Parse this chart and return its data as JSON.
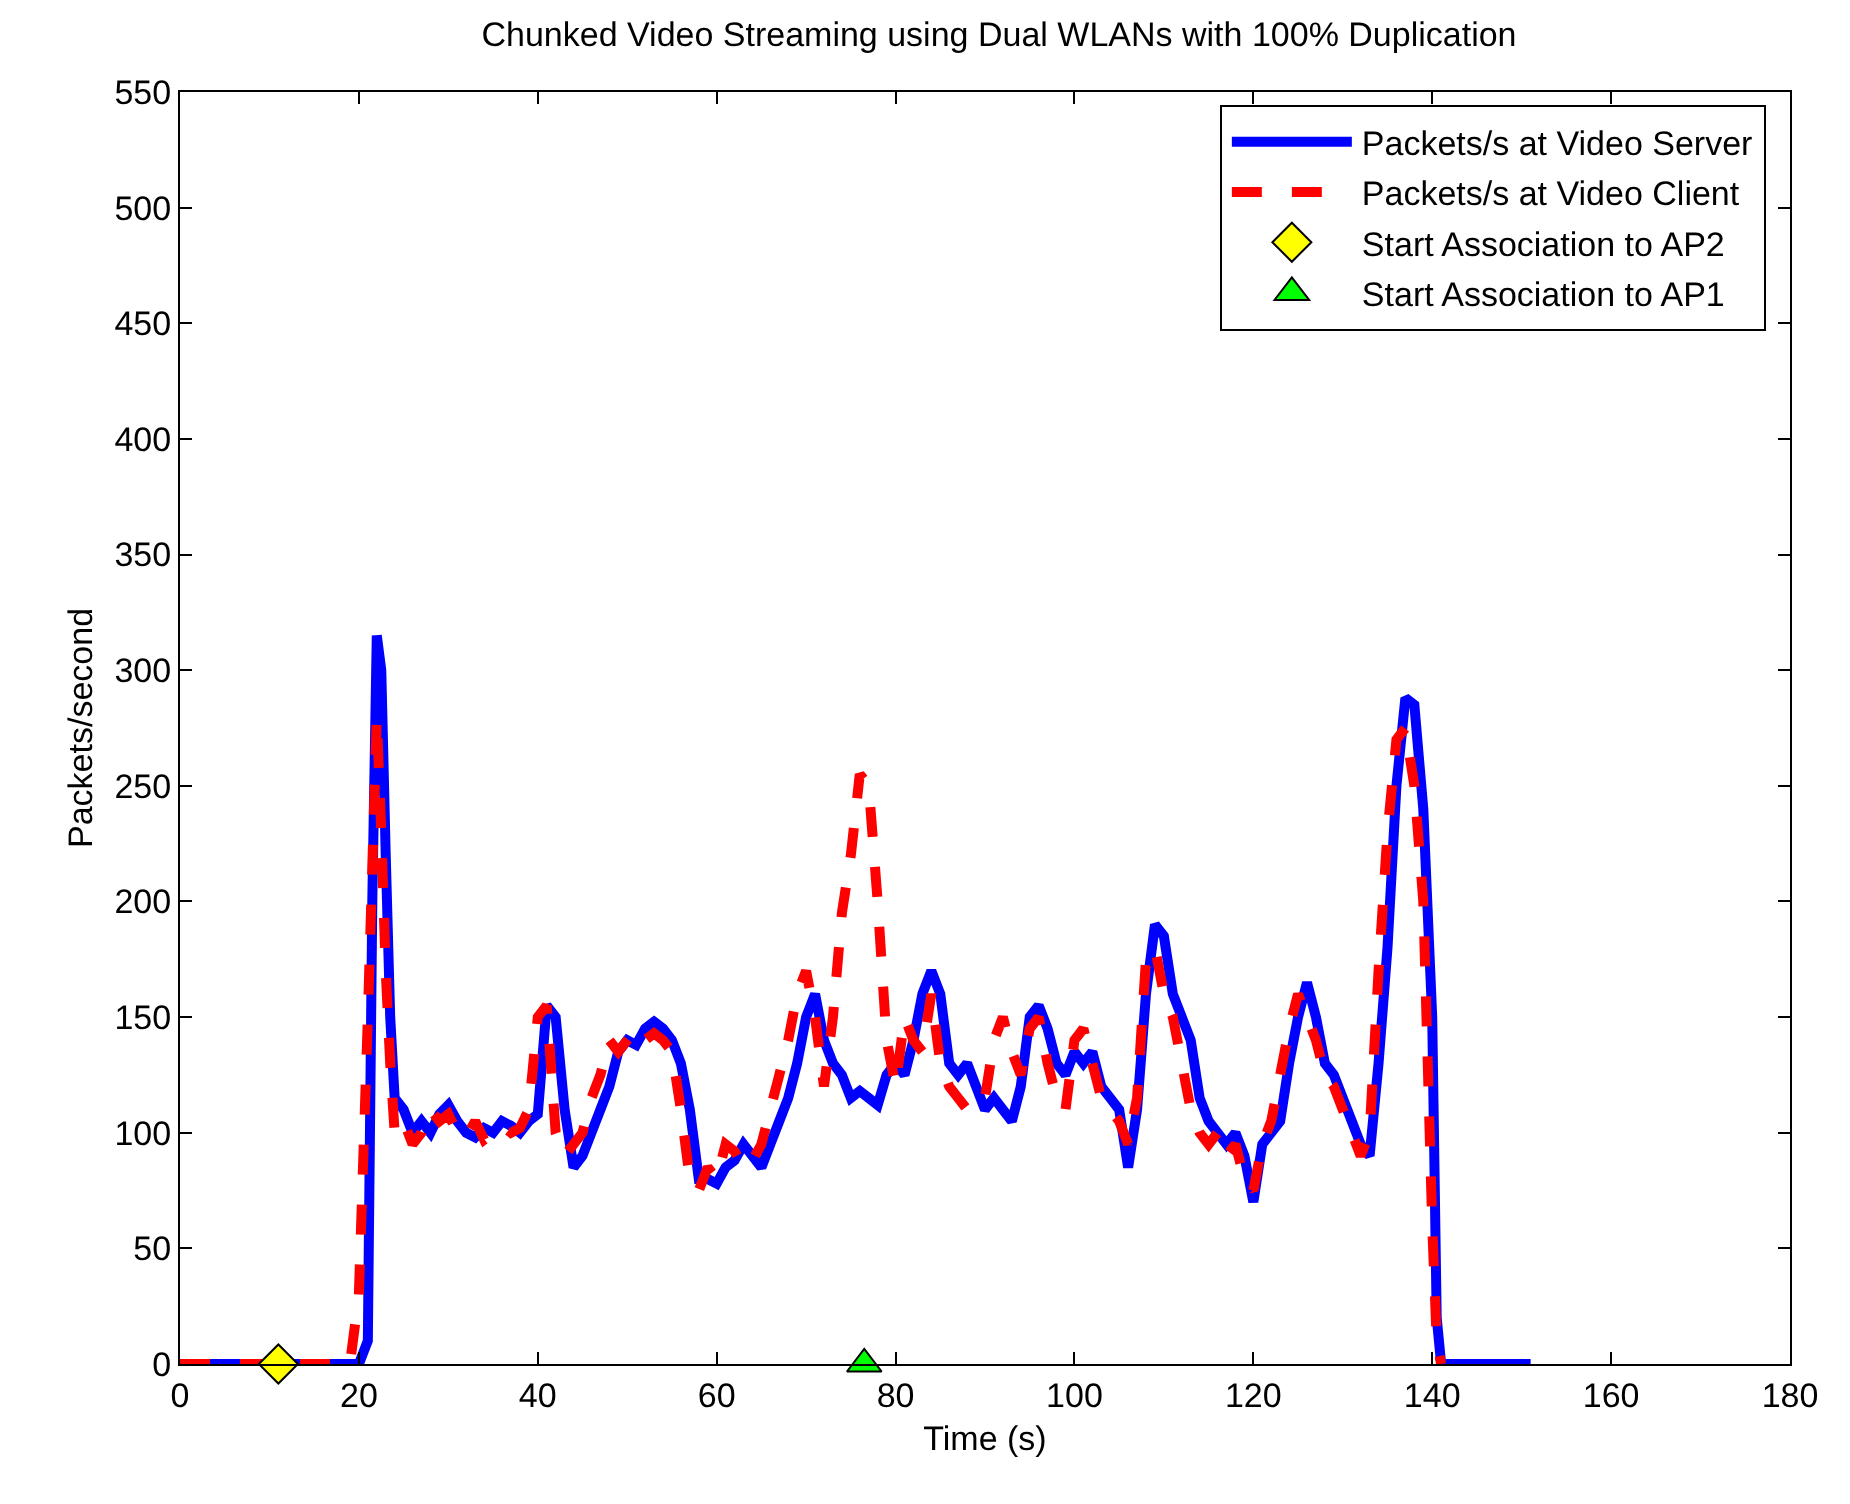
{
  "chart_data": {
    "type": "line",
    "title": "Chunked Video Streaming using Dual WLANs with 100% Duplication",
    "xlabel": "Time (s)",
    "ylabel": "Packets/second",
    "xlim": [
      0,
      180
    ],
    "xticks": [
      0,
      20,
      40,
      60,
      80,
      100,
      120,
      140,
      160,
      180
    ],
    "ylim": [
      0,
      550
    ],
    "yticks": [
      0,
      50,
      100,
      150,
      200,
      250,
      300,
      350,
      400,
      450,
      500,
      550
    ],
    "grid": false,
    "legend": "top right",
    "series": [
      {
        "name": "Packets/s at Video Server",
        "color": "#0000ff",
        "line_style": "solid",
        "marker": "none",
        "x": [
          0,
          20,
          21,
          21.5,
          22,
          22.5,
          23,
          23.5,
          24,
          25,
          26,
          27,
          28,
          29,
          30,
          31,
          32,
          33,
          34,
          35,
          36,
          37,
          38,
          39,
          40,
          41,
          42,
          43,
          44,
          45,
          46,
          47,
          48,
          49,
          50,
          51,
          52,
          53,
          54,
          55,
          56,
          57,
          58,
          59,
          60,
          61,
          62,
          63,
          64,
          65,
          66,
          67,
          68,
          69,
          70,
          71,
          72,
          73,
          74,
          75,
          76,
          77,
          78,
          79,
          80,
          81,
          82,
          83,
          84,
          85,
          86,
          87,
          88,
          89,
          90,
          91,
          92,
          93,
          94,
          95,
          96,
          97,
          98,
          99,
          100,
          101,
          102,
          103,
          104,
          105,
          106,
          107,
          108,
          109,
          110,
          111,
          112,
          113,
          114,
          115,
          116,
          117,
          118,
          119,
          120,
          121,
          122,
          123,
          124,
          125,
          126,
          127,
          128,
          129,
          130,
          131,
          132,
          133,
          134,
          135,
          136,
          137,
          138,
          139,
          140,
          140.5,
          141,
          151
        ],
        "values": [
          0,
          0,
          10,
          200,
          315,
          300,
          220,
          150,
          115,
          110,
          100,
          105,
          100,
          108,
          112,
          105,
          100,
          98,
          102,
          100,
          105,
          103,
          100,
          105,
          108,
          155,
          150,
          110,
          85,
          90,
          100,
          110,
          120,
          135,
          140,
          138,
          145,
          148,
          145,
          140,
          130,
          110,
          80,
          80,
          78,
          85,
          88,
          95,
          90,
          85,
          95,
          105,
          115,
          130,
          150,
          160,
          140,
          130,
          125,
          115,
          118,
          115,
          112,
          125,
          130,
          125,
          140,
          160,
          170,
          160,
          130,
          125,
          130,
          120,
          110,
          115,
          110,
          105,
          120,
          150,
          155,
          145,
          130,
          125,
          135,
          130,
          135,
          120,
          115,
          110,
          85,
          110,
          160,
          190,
          185,
          160,
          150,
          140,
          115,
          105,
          100,
          95,
          100,
          90,
          70,
          95,
          100,
          105,
          130,
          150,
          165,
          150,
          130,
          125,
          115,
          105,
          95,
          90,
          130,
          180,
          250,
          288,
          285,
          240,
          150,
          20,
          0,
          0
        ]
      },
      {
        "name": "Packets/s at Video Client",
        "color": "#ff0000",
        "line_style": "dashed",
        "marker": "none",
        "x": [
          0,
          19,
          20,
          21,
          22,
          22.5,
          23,
          23.5,
          24,
          25,
          26,
          27,
          28,
          29,
          30,
          31,
          32,
          33,
          34,
          35,
          36,
          37,
          38,
          39,
          40,
          41,
          42,
          43,
          44,
          45,
          46,
          47,
          48,
          49,
          50,
          51,
          52,
          53,
          54,
          55,
          56,
          57,
          58,
          59,
          60,
          61,
          62,
          63,
          64,
          65,
          66,
          67,
          68,
          69,
          70,
          71,
          72,
          73,
          74,
          75,
          76,
          77,
          78,
          79,
          80,
          81,
          82,
          83,
          84,
          85,
          86,
          87,
          88,
          89,
          90,
          91,
          92,
          93,
          94,
          95,
          96,
          97,
          98,
          99,
          100,
          101,
          102,
          103,
          104,
          105,
          106,
          107,
          108,
          109,
          110,
          111,
          112,
          113,
          114,
          115,
          116,
          117,
          118,
          119,
          120,
          121,
          122,
          123,
          124,
          125,
          126,
          127,
          128,
          129,
          130,
          131,
          132,
          133,
          134,
          135,
          136,
          137,
          138,
          139,
          140,
          140.5,
          141
        ],
        "values": [
          0,
          0,
          30,
          150,
          280,
          230,
          170,
          130,
          100,
          105,
          95,
          100,
          110,
          105,
          108,
          100,
          98,
          105,
          97,
          100,
          103,
          100,
          102,
          110,
          150,
          155,
          100,
          90,
          95,
          100,
          115,
          125,
          140,
          135,
          140,
          145,
          140,
          143,
          140,
          135,
          110,
          80,
          75,
          85,
          80,
          95,
          92,
          85,
          88,
          95,
          110,
          125,
          140,
          160,
          170,
          150,
          120,
          150,
          195,
          220,
          255,
          250,
          200,
          140,
          120,
          150,
          140,
          135,
          160,
          130,
          120,
          115,
          110,
          110,
          115,
          140,
          150,
          135,
          125,
          145,
          150,
          130,
          115,
          110,
          140,
          145,
          130,
          115,
          110,
          105,
          95,
          115,
          175,
          180,
          160,
          150,
          130,
          110,
          100,
          95,
          100,
          90,
          95,
          80,
          75,
          95,
          105,
          125,
          145,
          160,
          150,
          140,
          125,
          120,
          110,
          100,
          90,
          100,
          170,
          230,
          270,
          275,
          250,
          200,
          60,
          10,
          0
        ]
      },
      {
        "name": "Start Association to AP2",
        "type": "scatter",
        "color": "#ffff00",
        "marker": "diamond",
        "x": [
          11
        ],
        "values": [
          0
        ]
      },
      {
        "name": "Start Association to AP1",
        "type": "scatter",
        "color": "#00ff00",
        "marker": "triangle",
        "x": [
          76.5
        ],
        "values": [
          0
        ]
      }
    ]
  }
}
